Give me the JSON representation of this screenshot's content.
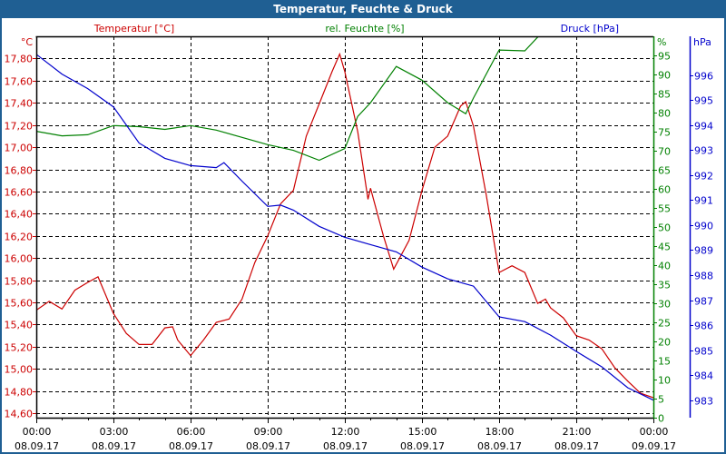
{
  "chart_data": {
    "type": "line",
    "title": "Temperatur, Feuchte & Druck",
    "x_ticks": [
      {
        "hour": 0,
        "time": "00:00",
        "date": "08.09.17"
      },
      {
        "hour": 3,
        "time": "03:00",
        "date": "08.09.17"
      },
      {
        "hour": 6,
        "time": "06:00",
        "date": "08.09.17"
      },
      {
        "hour": 9,
        "time": "09:00",
        "date": "08.09.17"
      },
      {
        "hour": 12,
        "time": "12:00",
        "date": "08.09.17"
      },
      {
        "hour": 15,
        "time": "15:00",
        "date": "08.09.17"
      },
      {
        "hour": 18,
        "time": "18:00",
        "date": "08.09.17"
      },
      {
        "hour": 21,
        "time": "21:00",
        "date": "08.09.17"
      },
      {
        "hour": 24,
        "time": "00:00",
        "date": "09.09.17"
      }
    ],
    "xlim": [
      0,
      24
    ],
    "grid": true,
    "axes": {
      "temperature": {
        "label": "Temperatur [°C]",
        "unit": "°C",
        "color": "#cc0000",
        "ylim": [
          14.56,
          18.0
        ],
        "ticks": [
          "14,60",
          "14,80",
          "15,00",
          "15,20",
          "15,40",
          "15,60",
          "15,80",
          "16,00",
          "16,20",
          "16,40",
          "16,60",
          "16,80",
          "17,00",
          "17,20",
          "17,40",
          "17,60",
          "17,80"
        ],
        "tick_values": [
          14.6,
          14.8,
          15.0,
          15.2,
          15.4,
          15.6,
          15.8,
          16.0,
          16.2,
          16.4,
          16.6,
          16.8,
          17.0,
          17.2,
          17.4,
          17.6,
          17.8
        ]
      },
      "humidity": {
        "label": "rel. Feuchte [%]",
        "unit": "%",
        "color": "#008000",
        "ylim": [
          0,
          100
        ],
        "ticks": [
          "0",
          "5",
          "10",
          "15",
          "20",
          "25",
          "30",
          "35",
          "40",
          "45",
          "50",
          "55",
          "60",
          "65",
          "70",
          "75",
          "80",
          "85",
          "90",
          "95"
        ],
        "tick_values": [
          0,
          5,
          10,
          15,
          20,
          25,
          30,
          35,
          40,
          45,
          50,
          55,
          60,
          65,
          70,
          75,
          80,
          85,
          90,
          95
        ]
      },
      "pressure": {
        "label": "Druck [hPa]",
        "unit": "hPa",
        "color": "#0000cc",
        "ylim": [
          982.3,
          997.55
        ],
        "ticks": [
          "983",
          "984",
          "985",
          "986",
          "987",
          "988",
          "989",
          "990",
          "991",
          "992",
          "993",
          "994",
          "995",
          "996"
        ],
        "tick_values": [
          983,
          984,
          985,
          986,
          987,
          988,
          989,
          990,
          991,
          992,
          993,
          994,
          995,
          996
        ]
      }
    },
    "series": [
      {
        "name": "Temperatur [°C]",
        "axis": "temperature",
        "color": "#cc0000",
        "x": [
          0,
          0.5,
          1,
          1.5,
          2,
          2.4,
          3,
          3.5,
          4,
          4.5,
          5,
          5.3,
          5.5,
          6,
          6.5,
          7,
          7.5,
          8,
          8.5,
          9,
          9.5,
          10,
          10.5,
          11,
          11.5,
          11.8,
          12,
          12.5,
          12.9,
          13,
          13.5,
          13.9,
          14.5,
          15,
          15.5,
          16,
          16.5,
          16.7,
          17,
          17.5,
          18,
          18.5,
          19,
          19.5,
          19.8,
          20,
          20.5,
          21,
          21.5,
          22,
          22.5,
          23,
          23.5,
          24
        ],
        "y": [
          15.53,
          15.61,
          15.54,
          15.71,
          15.78,
          15.83,
          15.5,
          15.32,
          15.22,
          15.22,
          15.37,
          15.38,
          15.26,
          15.12,
          15.26,
          15.42,
          15.45,
          15.63,
          15.96,
          16.2,
          16.49,
          16.61,
          17.1,
          17.39,
          17.68,
          17.84,
          17.68,
          17.14,
          16.53,
          16.63,
          16.2,
          15.9,
          16.16,
          16.61,
          17.0,
          17.1,
          17.37,
          17.41,
          17.19,
          16.57,
          15.87,
          15.93,
          15.87,
          15.59,
          15.63,
          15.55,
          15.46,
          15.3,
          15.26,
          15.18,
          15.01,
          14.89,
          14.78,
          14.74
        ]
      },
      {
        "name": "rel. Feuchte [%]",
        "axis": "humidity",
        "color": "#008000",
        "x": [
          0,
          1,
          2,
          3,
          4,
          5,
          6,
          7,
          8,
          9,
          10,
          11,
          12,
          12.5,
          13,
          14,
          15,
          16,
          16.7,
          17,
          18,
          19,
          19.6,
          24
        ],
        "y": [
          75.1,
          73.9,
          74.2,
          76.6,
          76.3,
          75.6,
          76.6,
          75.4,
          73.5,
          71.6,
          70.1,
          67.5,
          70.6,
          79,
          82.6,
          92.1,
          88.5,
          82.6,
          79.7,
          83.8,
          96.4,
          96.2,
          100.5,
          100.5
        ]
      },
      {
        "name": "Druck [hPa]",
        "axis": "pressure",
        "color": "#0000cc",
        "x": [
          0,
          1,
          2,
          3,
          4,
          5,
          6,
          7,
          7.3,
          8,
          9,
          9.5,
          10,
          11,
          12,
          13,
          14,
          15,
          16,
          17,
          18,
          19,
          20,
          21,
          22,
          23,
          24
        ],
        "y": [
          996.83,
          996.04,
          995.46,
          994.73,
          993.28,
          992.67,
          992.38,
          992.3,
          992.5,
          991.76,
          990.75,
          990.8,
          990.6,
          989.95,
          989.51,
          989.22,
          988.93,
          988.32,
          987.85,
          987.56,
          986.33,
          986.14,
          985.6,
          984.95,
          984.33,
          983.5,
          983.0
        ]
      }
    ]
  }
}
